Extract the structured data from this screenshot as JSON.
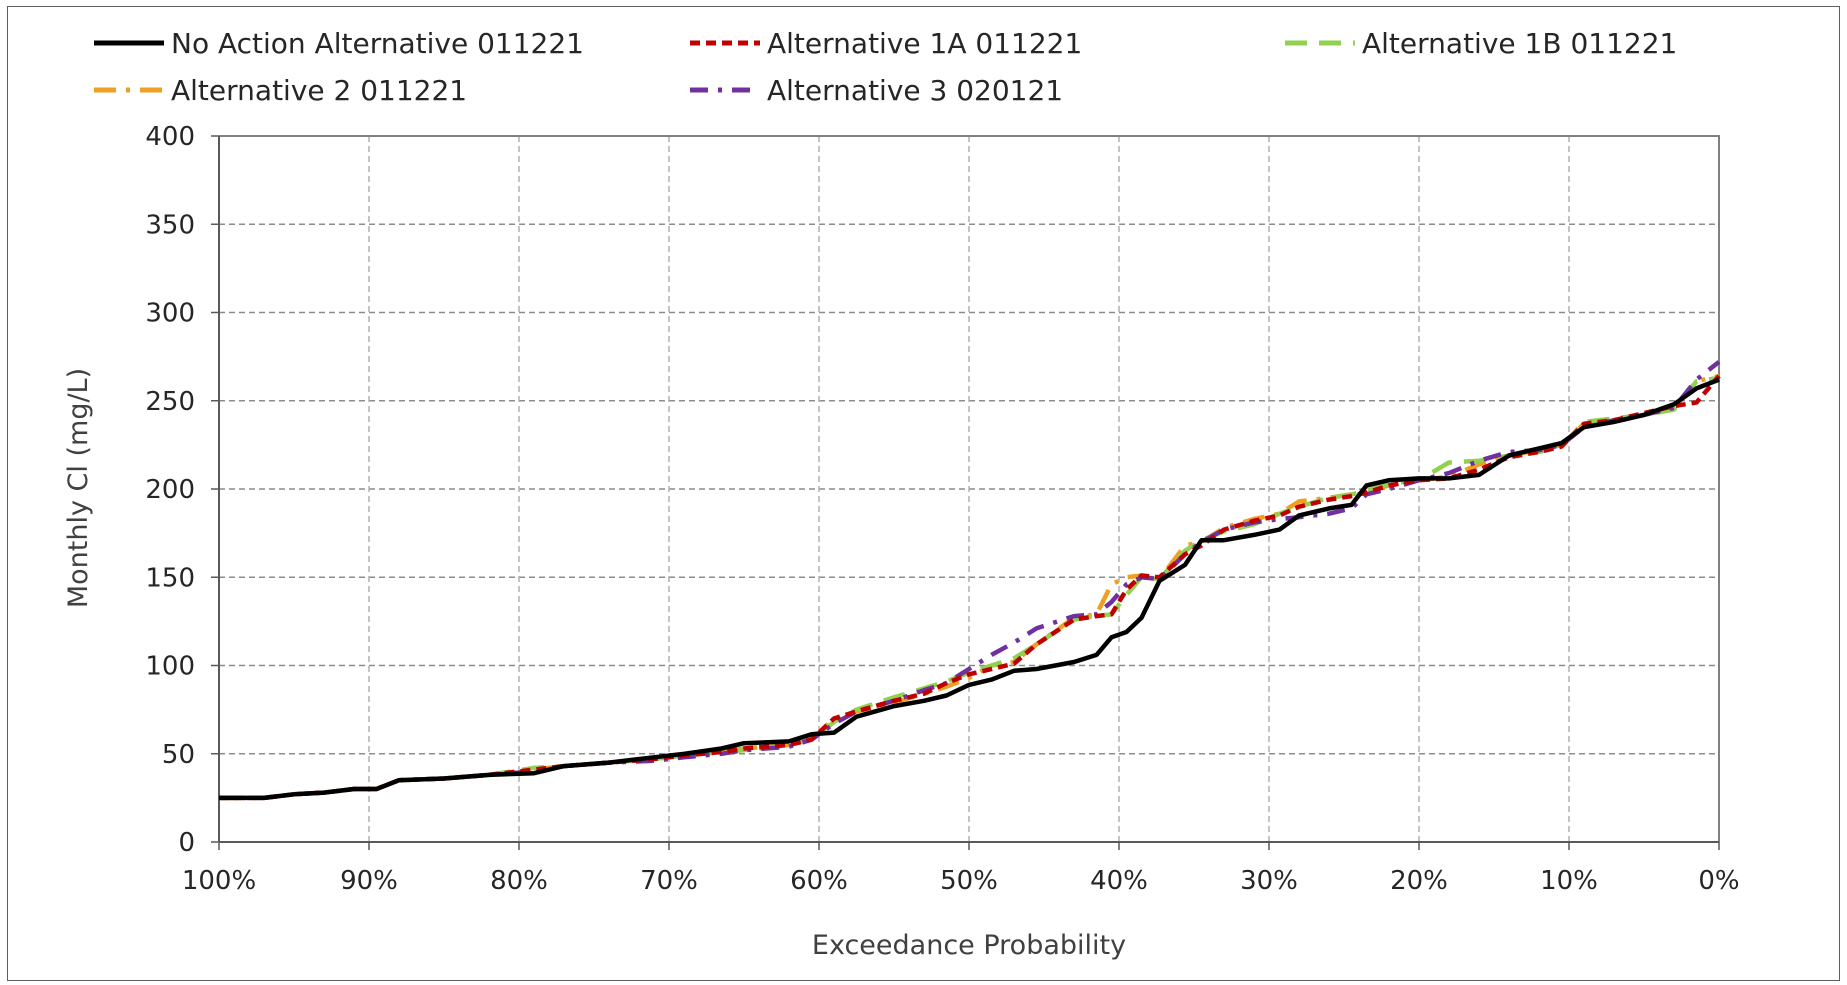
{
  "chart_data": {
    "type": "line",
    "title": "",
    "xlabel": "Exceedance Probability",
    "ylabel": "Monthly Cl (mg/L)",
    "xlim": [
      100,
      0
    ],
    "ylim": [
      0,
      400
    ],
    "x_unit": "%",
    "x_ticks": [
      "100%",
      "90%",
      "80%",
      "70%",
      "60%",
      "50%",
      "40%",
      "30%",
      "20%",
      "10%",
      "0%"
    ],
    "y_ticks": [
      "0",
      "50",
      "100",
      "150",
      "200",
      "250",
      "300",
      "350",
      "400"
    ],
    "grid": true,
    "legend_position": "top",
    "series": [
      {
        "name": "No Action Alternative 011221",
        "color": "#000000",
        "dash": "solid",
        "x": [
          100,
          97,
          95,
          93,
          91,
          89.5,
          88,
          85,
          82,
          79,
          77,
          74,
          71,
          69,
          66.5,
          65,
          62,
          60.5,
          59,
          57.5,
          55,
          53,
          51.5,
          50,
          48.5,
          47,
          45.5,
          43,
          41.5,
          40.5,
          39.5,
          38.5,
          37.3,
          35.6,
          34.5,
          33,
          31,
          29.3,
          28,
          26,
          24.5,
          23.5,
          22,
          20,
          18,
          16,
          14,
          12,
          10.5,
          9,
          7,
          5,
          3,
          1.5,
          0
        ],
        "y": [
          25,
          25,
          27,
          28,
          30,
          30,
          35,
          36,
          38,
          39,
          43,
          45,
          48,
          50,
          53,
          56,
          57,
          61,
          62,
          71,
          77,
          80,
          83,
          89,
          92,
          97,
          98,
          102,
          106,
          116,
          119,
          127,
          148,
          157,
          171,
          171,
          174,
          177,
          185,
          189,
          191,
          202,
          205,
          206,
          206,
          208,
          219,
          223,
          226,
          235,
          238,
          242,
          248,
          257,
          262
        ]
      },
      {
        "name": "Alternative 1A 011221",
        "color": "#c00000",
        "dash": "short-dash",
        "x": [
          100,
          97,
          95,
          93,
          91,
          89.5,
          88,
          85,
          82,
          79,
          77,
          74,
          71,
          69,
          66.5,
          65,
          62,
          60.5,
          59,
          57.5,
          55,
          53,
          51.5,
          50,
          48.5,
          47,
          45.5,
          43,
          41.5,
          40.5,
          39.5,
          38.5,
          37.3,
          35.6,
          34.5,
          33,
          31,
          29.3,
          28,
          26,
          24.5,
          23.5,
          22,
          20,
          18,
          16,
          14,
          12,
          10.5,
          9,
          7,
          5,
          3,
          1.5,
          0
        ],
        "y": [
          25,
          25,
          27,
          28,
          30,
          30,
          35,
          36,
          38,
          41,
          43,
          45,
          47,
          49,
          51,
          53,
          55,
          58,
          70,
          74,
          80,
          84,
          90,
          95,
          98,
          101,
          112,
          126,
          128,
          129,
          143,
          151,
          150,
          163,
          168,
          177,
          182,
          185,
          190,
          194,
          196,
          198,
          202,
          205,
          206,
          211,
          218,
          221,
          224,
          237,
          239,
          243,
          247,
          249,
          264
        ]
      },
      {
        "name": "Alternative 1B 011221",
        "color": "#92d050",
        "dash": "long-dash",
        "x": [
          100,
          97,
          95,
          93,
          91,
          89.5,
          88,
          85,
          82,
          79,
          77,
          74,
          71,
          69,
          66.5,
          65,
          62,
          60.5,
          59,
          57.5,
          55,
          53,
          51.5,
          50,
          48.5,
          47,
          45.5,
          43,
          41.5,
          40.5,
          39.5,
          38.5,
          37.3,
          35.6,
          34.5,
          33,
          31,
          29.3,
          28,
          26,
          24.5,
          23.5,
          22,
          20,
          18,
          16,
          14,
          12,
          10.5,
          9,
          7,
          5,
          3,
          1.5,
          0
        ],
        "y": [
          25,
          25,
          27,
          28,
          30,
          30,
          35,
          36,
          38,
          42,
          43,
          45,
          47,
          49,
          51,
          52,
          55,
          58,
          68,
          75,
          82,
          87,
          91,
          96,
          100,
          104,
          112,
          126,
          128,
          129,
          140,
          150,
          149,
          165,
          171,
          176,
          180,
          186,
          190,
          195,
          197,
          199,
          203,
          205,
          215,
          216,
          219,
          221,
          224,
          238,
          240,
          242,
          245,
          261,
          263
        ]
      },
      {
        "name": "Alternative 2 011221",
        "color": "#f0a020",
        "dash": "long-dash-dot",
        "x": [
          100,
          97,
          95,
          93,
          91,
          89.5,
          88,
          85,
          82,
          79,
          77,
          74,
          71,
          69,
          66.5,
          65,
          62,
          60.5,
          59,
          57.5,
          55,
          53,
          51.5,
          50,
          48.5,
          47,
          45.5,
          43,
          41.5,
          40.5,
          39.5,
          38.5,
          37.3,
          35.6,
          34.5,
          33,
          31,
          29.3,
          28,
          26,
          24.5,
          23.5,
          22,
          20,
          18,
          16,
          14,
          12,
          10.5,
          9,
          7,
          5,
          3,
          1.5,
          0
        ],
        "y": [
          25,
          25,
          27,
          28,
          30,
          30,
          35,
          36,
          38,
          41,
          43,
          45,
          47,
          49,
          51,
          53,
          55,
          58,
          70,
          74,
          79,
          84,
          88,
          93,
          100,
          102,
          112,
          127,
          129,
          146,
          150,
          151,
          149,
          168,
          170,
          178,
          183,
          186,
          193,
          195,
          197,
          199,
          202,
          205,
          207,
          214,
          219,
          222,
          225,
          237,
          238,
          242,
          246,
          261,
          264
        ]
      },
      {
        "name": "Alternative 3 020121",
        "color": "#7030a0",
        "dash": "dash-dot",
        "x": [
          100,
          97,
          95,
          93,
          91,
          89.5,
          88,
          85,
          82,
          79,
          77,
          74,
          71,
          69,
          66.5,
          65,
          62,
          60.5,
          59,
          57.5,
          55,
          53,
          51.5,
          50,
          48.5,
          47,
          45.5,
          43,
          41.5,
          40.5,
          39.5,
          38.5,
          37.3,
          35.6,
          34.5,
          33,
          31,
          29.3,
          28,
          26,
          24.5,
          23.5,
          22,
          20,
          18,
          16,
          14,
          12,
          10.5,
          9,
          7,
          5,
          3,
          1.5,
          0
        ],
        "y": [
          25,
          25,
          27,
          28,
          30,
          30,
          35,
          36,
          38,
          40,
          43,
          45,
          46,
          48,
          50,
          52,
          54,
          58,
          67,
          74,
          80,
          86,
          90,
          98,
          106,
          113,
          121,
          128,
          129,
          136,
          146,
          150,
          149,
          163,
          170,
          177,
          181,
          183,
          184,
          186,
          189,
          197,
          200,
          205,
          209,
          216,
          221,
          222,
          225,
          235,
          239,
          242,
          246,
          262,
          272
        ]
      }
    ]
  }
}
